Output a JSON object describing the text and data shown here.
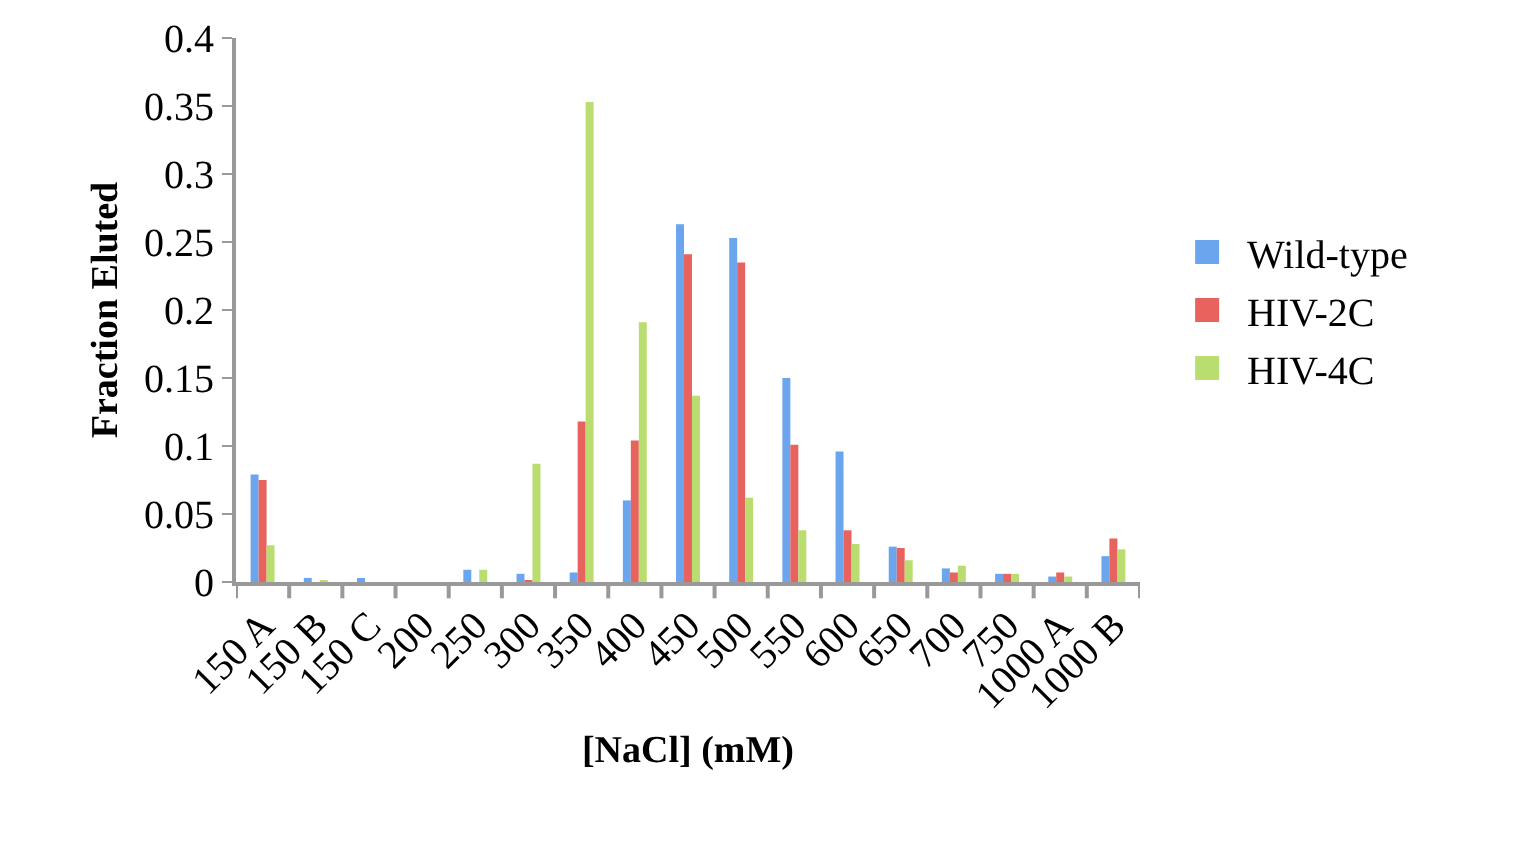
{
  "chart_data": {
    "type": "bar",
    "xlabel": "[NaCl] (mM)",
    "ylabel": "Fraction Eluted",
    "categories": [
      "150 A",
      "150 B",
      "150 C",
      "200",
      "250",
      "300",
      "350",
      "400",
      "450",
      "500",
      "550",
      "600",
      "650",
      "700",
      "750",
      "1000 A",
      "1000 B"
    ],
    "series": [
      {
        "name": "Wild-type",
        "color": "#6aa5ee",
        "values": [
          0.079,
          0.003,
          0.002,
          0,
          0.009,
          0.006,
          0.007,
          0.06,
          0.263,
          0.253,
          0.15,
          0.096,
          0.026,
          0.01,
          0.006,
          0.004,
          0.019
        ]
      },
      {
        "name": "HIV-2C",
        "color": "#e8625e",
        "values": [
          0.075,
          0,
          0,
          0,
          0,
          0.001,
          0.118,
          0.104,
          0.241,
          0.235,
          0.101,
          0.038,
          0.025,
          0.007,
          0.006,
          0.007,
          0.032
        ]
      },
      {
        "name": "HIV-4C",
        "color": "#b9dd6f",
        "values": [
          0.027,
          0.001,
          0,
          0,
          0.009,
          0.087,
          0.353,
          0.191,
          0.137,
          0.062,
          0.038,
          0.028,
          0.016,
          0.012,
          0.006,
          0.004,
          0.024
        ]
      }
    ],
    "ylim": [
      0,
      0.4
    ],
    "yticks": [
      0,
      0.05,
      0.1,
      0.15,
      0.2,
      0.25,
      0.3,
      0.35,
      0.4
    ],
    "grid": false,
    "legend": "right"
  }
}
